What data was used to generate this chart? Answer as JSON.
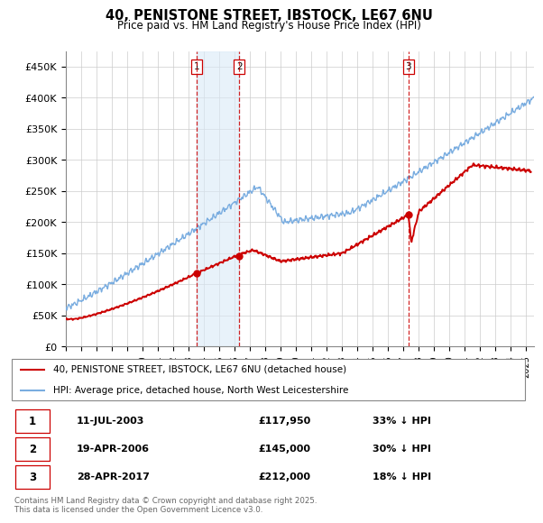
{
  "title_line1": "40, PENISTONE STREET, IBSTOCK, LE67 6NU",
  "title_line2": "Price paid vs. HM Land Registry's House Price Index (HPI)",
  "ylabel_ticks": [
    "£0",
    "£50K",
    "£100K",
    "£150K",
    "£200K",
    "£250K",
    "£300K",
    "£350K",
    "£400K",
    "£450K"
  ],
  "ytick_values": [
    0,
    50000,
    100000,
    150000,
    200000,
    250000,
    300000,
    350000,
    400000,
    450000
  ],
  "ylim": [
    0,
    475000
  ],
  "xlim_start": 1995.0,
  "xlim_end": 2025.5,
  "hpi_color": "#7aade0",
  "hpi_fill_color": "#daeaf7",
  "sale_color": "#cc0000",
  "vline_color": "#cc0000",
  "legend_label_sale": "40, PENISTONE STREET, IBSTOCK, LE67 6NU (detached house)",
  "legend_label_hpi": "HPI: Average price, detached house, North West Leicestershire",
  "transaction1_label": "1",
  "transaction1_date": "11-JUL-2003",
  "transaction1_price": "£117,950",
  "transaction1_hpi": "33% ↓ HPI",
  "transaction1_x": 2003.53,
  "transaction1_y": 117950,
  "transaction2_label": "2",
  "transaction2_date": "19-APR-2006",
  "transaction2_price": "£145,000",
  "transaction2_hpi": "30% ↓ HPI",
  "transaction2_x": 2006.3,
  "transaction2_y": 145000,
  "transaction3_label": "3",
  "transaction3_date": "28-APR-2017",
  "transaction3_price": "£212,000",
  "transaction3_hpi": "18% ↓ HPI",
  "transaction3_x": 2017.32,
  "transaction3_y": 212000,
  "footnote": "Contains HM Land Registry data © Crown copyright and database right 2025.\nThis data is licensed under the Open Government Licence v3.0.",
  "xtick_years": [
    1995,
    1996,
    1997,
    1998,
    1999,
    2000,
    2001,
    2002,
    2003,
    2004,
    2005,
    2006,
    2007,
    2008,
    2009,
    2010,
    2011,
    2012,
    2013,
    2014,
    2015,
    2016,
    2017,
    2018,
    2019,
    2020,
    2021,
    2022,
    2023,
    2024,
    2025
  ]
}
